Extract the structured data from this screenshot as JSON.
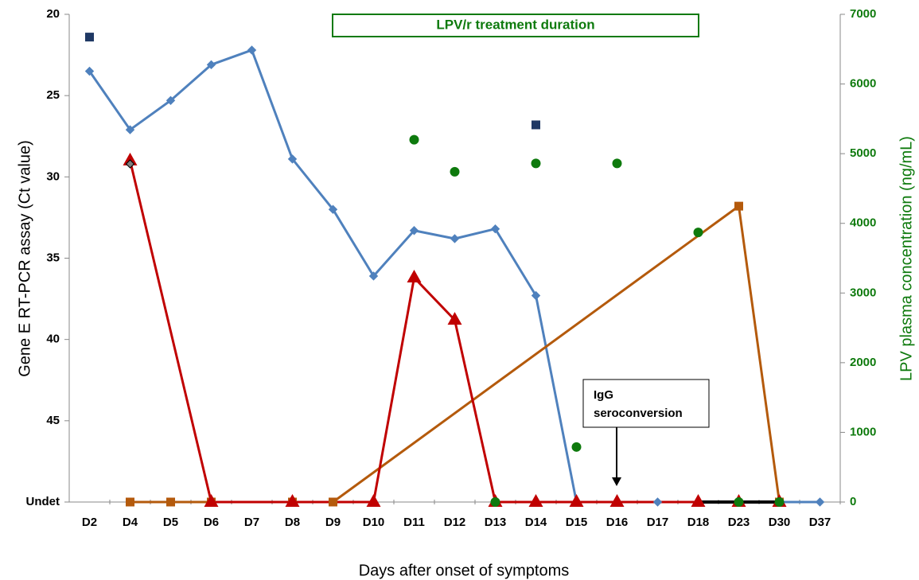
{
  "chart_data": {
    "type": "line",
    "categories": [
      "D2",
      "D4",
      "D5",
      "D6",
      "D7",
      "D8",
      "D9",
      "D10",
      "D11",
      "D12",
      "D13",
      "D14",
      "D15",
      "D16",
      "D17",
      "D18",
      "D23",
      "D30",
      "D37"
    ],
    "xlabel": "Days after onset of symptoms",
    "ylabel": "Gene E RT-PCR assay (Ct value)",
    "y2label": "LPV plasma concentration (ng/mL)",
    "ylim": [
      20,
      50
    ],
    "y_inverted": true,
    "yticks": [
      20,
      25,
      30,
      35,
      40,
      45,
      {
        "value": 50,
        "label": "Undet"
      }
    ],
    "y2lim": [
      0,
      7000
    ],
    "y2ticks": [
      0,
      1000,
      2000,
      3000,
      4000,
      5000,
      6000,
      7000
    ],
    "connect_gaps": true,
    "annotations": [
      "LPV/r treatment duration",
      "IgG",
      "seroconversion"
    ],
    "series": [
      {
        "color": "#4f81bd",
        "marker": "diamond",
        "line": true,
        "values": [
          23.5,
          27.1,
          25.3,
          23.1,
          22.2,
          28.9,
          32.0,
          36.1,
          33.3,
          33.8,
          33.2,
          37.3,
          50,
          50,
          50,
          50,
          50,
          50,
          50
        ]
      },
      {
        "color": "#b45a0c",
        "marker": "square",
        "line": true,
        "values": [
          null,
          50,
          50,
          50,
          null,
          50,
          50,
          null,
          null,
          null,
          null,
          null,
          null,
          null,
          null,
          null,
          31.8,
          50,
          null
        ]
      },
      {
        "color": "#c00000",
        "marker": "triangle",
        "line": true,
        "values": [
          null,
          29.0,
          null,
          50,
          null,
          50,
          null,
          50,
          36.2,
          38.8,
          50,
          50,
          50,
          50,
          null,
          50,
          50,
          50,
          null
        ]
      },
      {
        "color": "#000000",
        "marker": "none",
        "line": true,
        "values": [
          null,
          null,
          null,
          null,
          null,
          null,
          null,
          null,
          null,
          null,
          null,
          null,
          null,
          null,
          null,
          50,
          50,
          50,
          null
        ]
      },
      {
        "color": "#1f3864",
        "marker": "square",
        "line": false,
        "values": [
          21.4,
          null,
          null,
          null,
          null,
          null,
          null,
          null,
          null,
          null,
          null,
          26.8,
          null,
          null,
          null,
          null,
          null,
          null,
          null
        ]
      },
      {
        "color": "#7f7f7f",
        "marker": "diamond",
        "line": false,
        "values": [
          null,
          29.2,
          null,
          null,
          null,
          null,
          null,
          null,
          null,
          null,
          null,
          null,
          null,
          null,
          null,
          null,
          null,
          null,
          null
        ]
      },
      {
        "color": "#0e7a0d",
        "marker": "circle",
        "line": false,
        "axis": "y2",
        "values": [
          null,
          null,
          null,
          null,
          null,
          null,
          null,
          null,
          5200,
          4740,
          0,
          4860,
          790,
          4860,
          null,
          3870,
          0,
          0,
          null
        ]
      }
    ]
  }
}
